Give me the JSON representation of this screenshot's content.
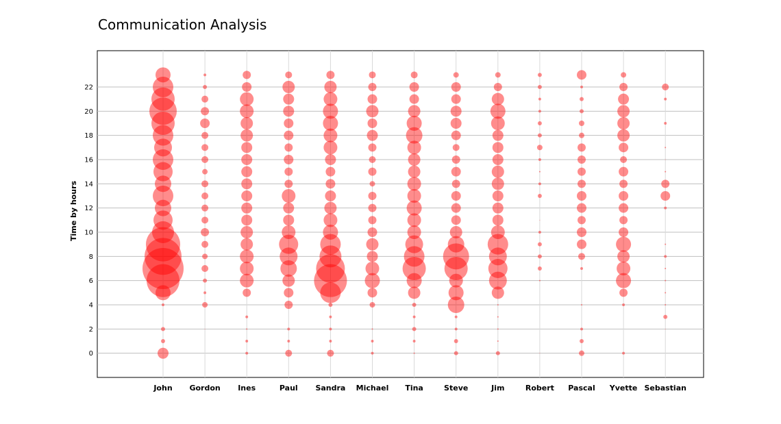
{
  "chart_data": {
    "type": "scatter",
    "title": "Communication Analysis",
    "xlabel": "",
    "ylabel": "Time by hours",
    "categories": [
      "John",
      "Gordon",
      "Ines",
      "Paul",
      "Sandra",
      "Michael",
      "Tina",
      "Steve",
      "Jim",
      "Robert",
      "Pascal",
      "Yvette",
      "Sebastian"
    ],
    "y_ticks": [
      0,
      2,
      4,
      6,
      8,
      10,
      12,
      14,
      16,
      18,
      20,
      22
    ],
    "ylim": [
      -2,
      25
    ],
    "grid": true,
    "bubble_color": "#ff0000",
    "series": [
      {
        "category": "John",
        "hours": [
          0,
          1,
          2,
          4,
          5,
          6,
          7,
          8,
          9,
          10,
          11,
          12,
          13,
          14,
          15,
          16,
          17,
          18,
          19,
          20,
          21,
          22,
          23
        ],
        "sizes": [
          8,
          3,
          3,
          2,
          11,
          24,
          30,
          27,
          25,
          16,
          14,
          12,
          15,
          12,
          14,
          15,
          13,
          15,
          17,
          20,
          17,
          15,
          11
        ]
      },
      {
        "category": "Gordon",
        "hours": [
          2,
          4,
          5,
          6,
          7,
          8,
          9,
          10,
          11,
          12,
          13,
          14,
          15,
          16,
          17,
          18,
          19,
          20,
          21,
          22,
          23
        ],
        "sizes": [
          0.5,
          4,
          2,
          3,
          5,
          4,
          5,
          6,
          5,
          5,
          5,
          5,
          4,
          5,
          5,
          5,
          7,
          6,
          5,
          3,
          2
        ]
      },
      {
        "category": "Ines",
        "hours": [
          0,
          1,
          2,
          3,
          5,
          6,
          7,
          8,
          9,
          10,
          11,
          12,
          13,
          14,
          15,
          16,
          17,
          18,
          19,
          20,
          21,
          22,
          23
        ],
        "sizes": [
          2,
          2,
          1,
          2,
          6,
          10,
          10,
          10,
          9,
          9,
          8,
          8,
          8,
          8,
          8,
          8,
          8,
          9,
          9,
          10,
          10,
          7,
          6
        ]
      },
      {
        "category": "Paul",
        "hours": [
          0,
          1,
          2,
          4,
          5,
          6,
          7,
          8,
          9,
          10,
          11,
          12,
          13,
          14,
          15,
          16,
          17,
          18,
          19,
          20,
          21,
          22,
          23
        ],
        "sizes": [
          5,
          2,
          2,
          6,
          7,
          9,
          12,
          13,
          14,
          10,
          8,
          8,
          10,
          6,
          6,
          7,
          6,
          7,
          7,
          8,
          8,
          9,
          5
        ]
      },
      {
        "category": "Sandra",
        "hours": [
          0,
          1,
          2,
          3,
          4,
          5,
          6,
          7,
          8,
          9,
          10,
          11,
          12,
          13,
          14,
          15,
          16,
          17,
          18,
          19,
          20,
          21,
          22,
          23
        ],
        "sizes": [
          5,
          2,
          2,
          2,
          3,
          15,
          24,
          21,
          16,
          15,
          11,
          10,
          9,
          8,
          7,
          7,
          8,
          10,
          10,
          11,
          11,
          10,
          9,
          6
        ]
      },
      {
        "category": "Michael",
        "hours": [
          0,
          1,
          2,
          4,
          5,
          6,
          7,
          8,
          9,
          10,
          11,
          12,
          13,
          14,
          15,
          16,
          17,
          18,
          19,
          20,
          21,
          22,
          23
        ],
        "sizes": [
          2,
          2,
          1,
          4,
          7,
          11,
          10,
          8,
          9,
          7,
          6,
          6,
          6,
          4,
          6,
          5,
          6,
          8,
          7,
          9,
          7,
          6,
          5
        ]
      },
      {
        "category": "Tina",
        "hours": [
          0,
          1,
          2,
          3,
          4,
          5,
          6,
          7,
          8,
          9,
          10,
          11,
          12,
          13,
          14,
          15,
          16,
          17,
          18,
          19,
          20,
          21,
          22,
          23
        ],
        "sizes": [
          1,
          2,
          3,
          2,
          3,
          9,
          11,
          17,
          15,
          13,
          10,
          10,
          11,
          10,
          10,
          9,
          9,
          10,
          12,
          11,
          9,
          7,
          7,
          5
        ]
      },
      {
        "category": "Steve",
        "hours": [
          0,
          1,
          2,
          3,
          4,
          5,
          6,
          7,
          8,
          9,
          10,
          11,
          12,
          13,
          14,
          15,
          16,
          17,
          18,
          19,
          20,
          21,
          22,
          23
        ],
        "sizes": [
          3,
          3,
          2,
          2,
          12,
          11,
          10,
          17,
          19,
          12,
          9,
          7,
          7,
          7,
          6,
          7,
          6,
          5,
          7,
          8,
          8,
          7,
          7,
          4
        ]
      },
      {
        "category": "Jim",
        "hours": [
          0,
          1,
          2,
          3,
          4,
          5,
          6,
          7,
          8,
          9,
          10,
          11,
          12,
          13,
          14,
          15,
          16,
          17,
          18,
          19,
          20,
          21,
          22,
          23
        ],
        "sizes": [
          3,
          1,
          1,
          1,
          1,
          9,
          13,
          14,
          13,
          15,
          10,
          8,
          8,
          8,
          9,
          9,
          8,
          8,
          8,
          10,
          11,
          9,
          6,
          4
        ]
      },
      {
        "category": "Robert",
        "hours": [
          0,
          6,
          7,
          8,
          9,
          10,
          11,
          13,
          14,
          15,
          16,
          17,
          18,
          19,
          20,
          21,
          22,
          23
        ],
        "sizes": [
          0.5,
          1,
          3,
          3,
          3,
          2,
          0.5,
          3,
          2,
          1,
          2,
          4,
          3,
          3,
          2,
          2,
          3,
          3
        ]
      },
      {
        "category": "Pascal",
        "hours": [
          0,
          1,
          2,
          4,
          7,
          8,
          9,
          10,
          11,
          12,
          13,
          14,
          15,
          16,
          17,
          18,
          19,
          20,
          21,
          22,
          23
        ],
        "sizes": [
          4,
          3,
          2,
          1,
          2,
          5,
          7,
          7,
          6,
          7,
          7,
          6,
          6,
          6,
          6,
          4,
          4,
          3,
          3,
          2,
          7
        ]
      },
      {
        "category": "Yvette",
        "hours": [
          0,
          4,
          5,
          6,
          7,
          8,
          9,
          10,
          11,
          12,
          13,
          14,
          15,
          16,
          17,
          18,
          19,
          20,
          21,
          22,
          23
        ],
        "sizes": [
          2,
          2,
          6,
          11,
          10,
          9,
          11,
          7,
          6,
          7,
          7,
          6,
          7,
          5,
          7,
          9,
          9,
          9,
          8,
          6,
          4
        ]
      },
      {
        "category": "Sebastian",
        "hours": [
          2,
          3,
          4,
          5,
          6,
          7,
          8,
          9,
          12,
          13,
          14,
          15,
          16,
          17,
          19,
          21,
          22
        ],
        "sizes": [
          0.5,
          3,
          1,
          1,
          1,
          1,
          2,
          1,
          2,
          7,
          6,
          1,
          0.5,
          1,
          2,
          2,
          5
        ]
      }
    ]
  }
}
